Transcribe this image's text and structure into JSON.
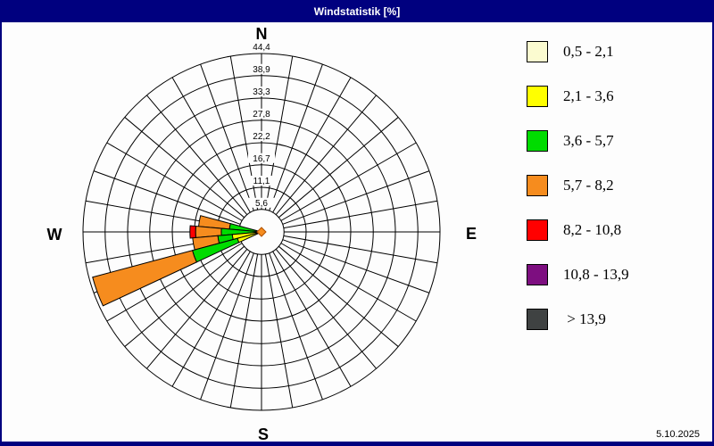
{
  "window": {
    "title": "Windstatistik [%]",
    "titlebar_color": "#00007F",
    "date": "5.10.2025"
  },
  "chart_data": {
    "type": "windrose",
    "title": "Windstatistik [%]",
    "units": "percent frequency",
    "compass_labels": {
      "n": "N",
      "e": "E",
      "s": "S",
      "w": "W"
    },
    "num_sectors": 36,
    "sector_width_deg": 10,
    "ring_values": [
      5.6,
      11.1,
      16.7,
      22.2,
      27.8,
      33.3,
      38.9,
      44.4
    ],
    "ring_labels": [
      "5,6",
      "11,1",
      "16,7",
      "22,2",
      "27,8",
      "33,3",
      "38,9",
      "44,4"
    ],
    "radial_max": 44.4,
    "grid_color": "#000000",
    "speed_classes": [
      {
        "label": "0,5 - 2,1",
        "color": "#FBFBD0"
      },
      {
        "label": "2,1 - 3,6",
        "color": "#FFFF00"
      },
      {
        "label": "3,6 - 5,7",
        "color": "#00DC00"
      },
      {
        "label": "5,7 - 8,2",
        "color": "#F68C1E"
      },
      {
        "label": "8,2 - 10,8",
        "color": "#FF0000"
      },
      {
        "label": "10,8 - 13,9",
        "color": "#7D0E80"
      },
      {
        "label": "> 13,9",
        "color": "#3F4242"
      }
    ],
    "sectors": [
      {
        "direction_deg": 280,
        "segments": [
          {
            "class": "3,6 - 5,7",
            "from": 0,
            "to": 8.0
          },
          {
            "class": "5,7 - 8,2",
            "from": 8.0,
            "to": 15.7
          }
        ]
      },
      {
        "direction_deg": 270,
        "segments": [
          {
            "class": "3,6 - 5,7",
            "from": 0,
            "to": 10.0
          },
          {
            "class": "5,7 - 8,2",
            "from": 10.0,
            "to": 16.4
          },
          {
            "class": "8,2 - 10,8",
            "from": 16.4,
            "to": 17.8
          }
        ]
      },
      {
        "direction_deg": 260,
        "segments": [
          {
            "class": "2,1 - 3,6",
            "from": 0,
            "to": 7.3
          },
          {
            "class": "3,6 - 5,7",
            "from": 7.3,
            "to": 10.9
          },
          {
            "class": "5,7 - 8,2",
            "from": 10.9,
            "to": 17.2
          }
        ]
      },
      {
        "direction_deg": 250,
        "segments": [
          {
            "class": "2,1 - 3,6",
            "from": 0,
            "to": 6.2
          },
          {
            "class": "3,6 - 5,7",
            "from": 6.2,
            "to": 17.8
          },
          {
            "class": "5,7 - 8,2",
            "from": 17.8,
            "to": 43.5
          }
        ]
      }
    ],
    "center_marker_color": "#F68C1E"
  }
}
